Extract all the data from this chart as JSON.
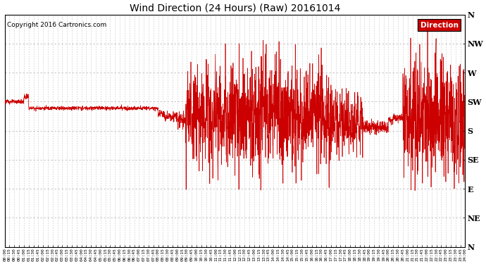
{
  "title": "Wind Direction (24 Hours) (Raw) 20161014",
  "copyright": "Copyright 2016 Cartronics.com",
  "legend_label": "Direction",
  "legend_bg": "#cc0000",
  "legend_fg": "#ffffff",
  "line_color": "#cc0000",
  "bg_color": "#ffffff",
  "grid_color": "#bbbbbb",
  "y_labels": [
    "N",
    "NW",
    "W",
    "SW",
    "S",
    "SE",
    "E",
    "NE",
    "N"
  ],
  "y_values": [
    360,
    315,
    270,
    225,
    180,
    135,
    90,
    45,
    0
  ],
  "ylim": [
    0,
    360
  ],
  "total_minutes": 1440,
  "tick_interval_minutes": 15,
  "figsize": [
    6.9,
    3.75
  ],
  "dpi": 100
}
